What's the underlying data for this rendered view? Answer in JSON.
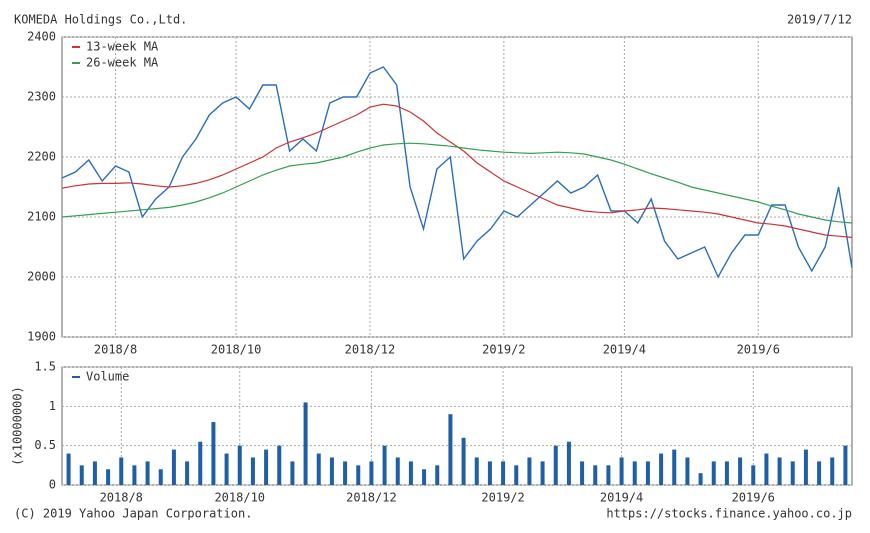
{
  "header": {
    "title": "KOMEDA Holdings Co.,Ltd.",
    "date": "2019/7/12"
  },
  "footer": {
    "copyright": "(C) 2019 Yahoo Japan Corporation.",
    "url": "https://stocks.finance.yahoo.co.jp"
  },
  "chart_data": [
    {
      "type": "line",
      "categories": [
        null,
        null,
        null,
        null,
        "2018/8",
        null,
        null,
        null,
        null,
        null,
        null,
        null,
        null,
        "2018/10",
        null,
        null,
        null,
        null,
        null,
        null,
        null,
        null,
        null,
        "2018/12",
        null,
        null,
        null,
        null,
        null,
        null,
        null,
        null,
        null,
        "2019/2",
        null,
        null,
        null,
        null,
        null,
        null,
        null,
        null,
        "2019/4",
        null,
        null,
        null,
        null,
        null,
        null,
        null,
        null,
        null,
        "2019/6",
        null,
        null,
        null,
        null,
        null,
        null,
        null
      ],
      "series": [
        {
          "color": "#2a6ebb",
          "values": [
            2165,
            2175,
            2195,
            2160,
            2185,
            2175,
            2100,
            2130,
            2150,
            2200,
            2230,
            2270,
            2290,
            2300,
            2280,
            2320,
            2320,
            2210,
            2230,
            2210,
            2290,
            2300,
            2300,
            2340,
            2350,
            2320,
            2150,
            2080,
            2180,
            2200,
            2030,
            2060,
            2080,
            2110,
            2100,
            2120,
            2140,
            2160,
            2140,
            2150,
            2170,
            2110,
            2110,
            2090,
            2130,
            2060,
            2030,
            2040,
            2050,
            2000,
            2040,
            2070,
            2070,
            2120,
            2120,
            2050,
            2010,
            2050,
            2150,
            2015
          ]
        },
        {
          "name": "13-week MA",
          "color": "#cc3333",
          "values": [
            2148,
            2152,
            2155,
            2156,
            2156,
            2157,
            2155,
            2152,
            2150,
            2152,
            2156,
            2162,
            2170,
            2180,
            2190,
            2200,
            2215,
            2225,
            2232,
            2240,
            2250,
            2260,
            2270,
            2283,
            2288,
            2285,
            2275,
            2260,
            2240,
            2225,
            2210,
            2190,
            2175,
            2160,
            2150,
            2140,
            2130,
            2120,
            2115,
            2110,
            2108,
            2107,
            2110,
            2112,
            2115,
            2114,
            2112,
            2110,
            2108,
            2105,
            2100,
            2095,
            2090,
            2088,
            2085,
            2080,
            2075,
            2070,
            2068,
            2066
          ]
        },
        {
          "name": "26-week MA",
          "color": "#33a050",
          "values": [
            2100,
            2102,
            2104,
            2106,
            2108,
            2110,
            2112,
            2114,
            2116,
            2120,
            2125,
            2132,
            2140,
            2150,
            2160,
            2170,
            2178,
            2185,
            2188,
            2190,
            2195,
            2200,
            2208,
            2215,
            2220,
            2222,
            2223,
            2222,
            2220,
            2218,
            2215,
            2212,
            2210,
            2208,
            2207,
            2206,
            2207,
            2208,
            2207,
            2205,
            2200,
            2195,
            2188,
            2180,
            2172,
            2165,
            2158,
            2150,
            2145,
            2140,
            2135,
            2130,
            2125,
            2118,
            2112,
            2105,
            2100,
            2095,
            2092,
            2090
          ]
        }
      ],
      "ylim": [
        1900,
        2400
      ],
      "yticks": [
        1900,
        2000,
        2100,
        2200,
        2300,
        2400
      ],
      "grid": true
    },
    {
      "type": "bar",
      "y_label": "(x10000000)",
      "categories": [
        null,
        null,
        null,
        null,
        "2018/8",
        null,
        null,
        null,
        null,
        null,
        null,
        null,
        null,
        "2018/10",
        null,
        null,
        null,
        null,
        null,
        null,
        null,
        null,
        null,
        "2018/12",
        null,
        null,
        null,
        null,
        null,
        null,
        null,
        null,
        null,
        "2019/2",
        null,
        null,
        null,
        null,
        null,
        null,
        null,
        null,
        "2019/4",
        null,
        null,
        null,
        null,
        null,
        null,
        null,
        null,
        null,
        "2019/6",
        null,
        null,
        null,
        null,
        null,
        null,
        null
      ],
      "series": [
        {
          "name": "Volume",
          "color": "#1f5fa8",
          "values": [
            0.4,
            0.25,
            0.3,
            0.2,
            0.35,
            0.25,
            0.3,
            0.2,
            0.45,
            0.3,
            0.55,
            0.8,
            0.4,
            0.5,
            0.35,
            0.45,
            0.5,
            0.3,
            1.05,
            0.4,
            0.35,
            0.3,
            0.25,
            0.3,
            0.5,
            0.35,
            0.3,
            0.2,
            0.25,
            0.9,
            0.6,
            0.35,
            0.3,
            0.3,
            0.25,
            0.35,
            0.3,
            0.5,
            0.55,
            0.3,
            0.25,
            0.25,
            0.35,
            0.3,
            0.3,
            0.4,
            0.45,
            0.35,
            0.15,
            0.3,
            0.3,
            0.35,
            0.25,
            0.4,
            0.35,
            0.3,
            0.45,
            0.3,
            0.35,
            0.5
          ]
        }
      ],
      "ylim": [
        0,
        1.5
      ],
      "yticks": [
        0,
        0.5,
        1,
        1.5
      ],
      "grid": true
    }
  ]
}
